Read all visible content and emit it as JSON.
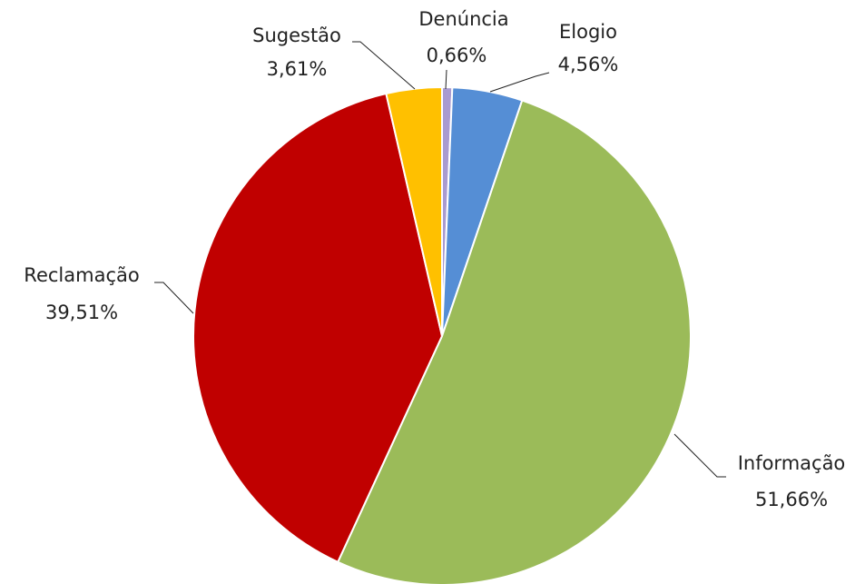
{
  "chart_data": {
    "type": "pie",
    "categories": [
      "Denúncia",
      "Elogio",
      "Informação",
      "Reclamação",
      "Sugestão"
    ],
    "values": [
      0.66,
      4.56,
      51.66,
      39.51,
      3.61
    ],
    "value_labels": [
      "0,66%",
      "4,56%",
      "51,66%",
      "39,51%",
      "3,61%"
    ],
    "colors": [
      "#a99bd0",
      "#558ed5",
      "#9bbb59",
      "#c00000",
      "#ffc000"
    ]
  }
}
